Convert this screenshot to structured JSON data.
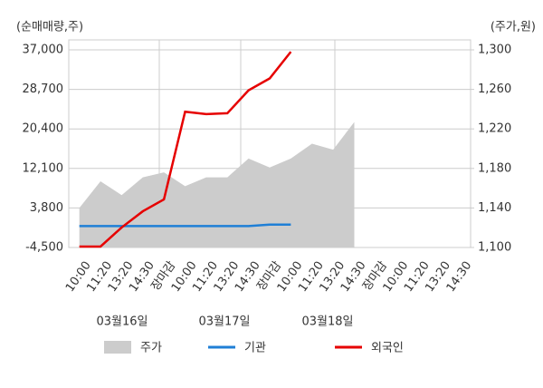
{
  "chart_data": {
    "type": "line",
    "y_label": "(순매매량,주)",
    "y2_label": "(주가,원)",
    "categories": [
      "10:00",
      "11:20",
      "13:20",
      "14:30",
      "장마감",
      "10:00",
      "11:20",
      "13:20",
      "14:30",
      "장마감",
      "10:00",
      "11:20",
      "13:20",
      "14:30",
      "장마감",
      "10:00",
      "11:20",
      "13:20",
      "14:30"
    ],
    "dates": [
      "03월16일",
      "03월17일",
      "03월18일"
    ],
    "ylim": [
      -4500,
      37000
    ],
    "yticks": [
      {
        "value": -4500,
        "label": "-4,500"
      },
      {
        "value": 3800,
        "label": "3,800"
      },
      {
        "value": 12100,
        "label": "12,100"
      },
      {
        "value": 20400,
        "label": "20,400"
      },
      {
        "value": 28700,
        "label": "28,700"
      },
      {
        "value": 37000,
        "label": "37,000"
      }
    ],
    "y2lim": [
      1100,
      1300
    ],
    "y2ticks": [
      {
        "value": 1100,
        "label": "1,100"
      },
      {
        "value": 1140,
        "label": "1,140"
      },
      {
        "value": 1180,
        "label": "1,180"
      },
      {
        "value": 1220,
        "label": "1,220"
      },
      {
        "value": 1260,
        "label": "1,260"
      },
      {
        "value": 1300,
        "label": "1,300"
      }
    ],
    "series": [
      {
        "name": "주가",
        "color": "#cccccc",
        "axis": "y2",
        "kind": "area",
        "values": [
          1140,
          1167,
          1153,
          1171,
          1176,
          1162,
          1171,
          1171,
          1190,
          1181,
          1190,
          1205,
          1199,
          1227,
          null,
          null,
          null,
          null,
          null
        ]
      },
      {
        "name": "기관",
        "color": "#1f7fd6",
        "kind": "line",
        "values": [
          0,
          0,
          0,
          0,
          0,
          0,
          0,
          0,
          0,
          300,
          300,
          null,
          null,
          null,
          null,
          null,
          null,
          null,
          null
        ]
      },
      {
        "name": "외국인",
        "color": "#e60000",
        "kind": "line",
        "values": [
          -4300,
          -4300,
          -300,
          3100,
          5600,
          24000,
          23500,
          23700,
          28500,
          31000,
          36600,
          null,
          null,
          null,
          null,
          null,
          null,
          null,
          null
        ]
      }
    ]
  }
}
